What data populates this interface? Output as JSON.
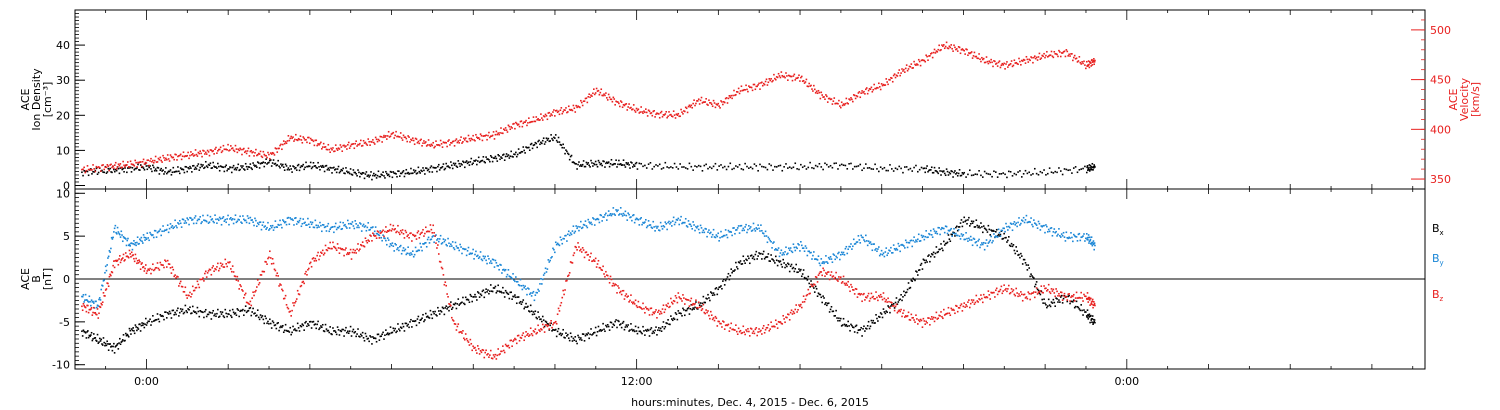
{
  "chart_data": [
    {
      "type": "scatter",
      "title": "",
      "xlabel": "hours:minutes, Dec. 4, 2015 - Dec. 6, 2015",
      "x_tick_labels": [
        "0:00",
        "12:00",
        "0:00"
      ],
      "x_tick_hours": [
        0,
        12,
        24
      ],
      "xlim_hours": [
        -1.75,
        31.3
      ],
      "left_axis": {
        "label_lines": [
          "ACE",
          "Ion Density",
          "[cm⁻³]"
        ],
        "ylim": [
          -1,
          50
        ],
        "ticks": [
          0,
          10,
          20,
          30,
          40
        ],
        "tick_labels": [
          "0",
          "10",
          "20",
          "30",
          "40"
        ]
      },
      "right_axis": {
        "label_lines": [
          "ACE",
          "Velocity",
          "[km/s]"
        ],
        "ylim": [
          340,
          520
        ],
        "ticks": [
          350,
          400,
          450,
          500
        ],
        "tick_labels": [
          "350",
          "400",
          "450",
          "500"
        ],
        "color": "#e8201f"
      },
      "series": [
        {
          "axis": "left",
          "color": "#000000",
          "points": [
            [
              -1.6,
              4
            ],
            [
              -1.0,
              4.5
            ],
            [
              -0.5,
              5
            ],
            [
              0,
              5.5
            ],
            [
              0.5,
              4
            ],
            [
              1,
              5
            ],
            [
              1.5,
              6
            ],
            [
              2,
              5
            ],
            [
              2.5,
              5.5
            ],
            [
              3,
              7
            ],
            [
              3.5,
              5
            ],
            [
              4,
              6
            ],
            [
              4.5,
              5
            ],
            [
              5,
              4
            ],
            [
              5.5,
              3
            ],
            [
              6,
              3.5
            ],
            [
              6.5,
              4
            ],
            [
              7,
              5
            ],
            [
              7.5,
              6
            ],
            [
              8,
              7
            ],
            [
              8.5,
              8
            ],
            [
              9,
              9
            ],
            [
              9.5,
              12
            ],
            [
              10,
              14
            ],
            [
              10.5,
              6
            ],
            [
              11,
              6.5
            ],
            [
              11.5,
              6.5
            ],
            [
              12,
              6
            ],
            [
              13,
              5.5
            ],
            [
              14,
              5.5
            ],
            [
              15,
              5.5
            ],
            [
              16,
              5.5
            ],
            [
              17,
              6
            ],
            [
              18,
              5
            ],
            [
              19,
              5
            ],
            [
              19.5,
              4
            ],
            [
              20,
              3.5
            ],
            [
              21,
              3.5
            ],
            [
              22,
              4
            ],
            [
              23,
              5
            ],
            [
              23.2,
              5.5
            ]
          ]
        },
        {
          "axis": "right",
          "color": "#e8201f",
          "points": [
            [
              -1.6,
              360
            ],
            [
              -1.0,
              363
            ],
            [
              -0.5,
              365
            ],
            [
              0,
              368
            ],
            [
              0.5,
              372
            ],
            [
              1,
              375
            ],
            [
              1.5,
              378
            ],
            [
              2,
              382
            ],
            [
              2.5,
              378
            ],
            [
              3,
              374
            ],
            [
              3.5,
              392
            ],
            [
              4,
              390
            ],
            [
              4.5,
              380
            ],
            [
              5,
              385
            ],
            [
              5.5,
              388
            ],
            [
              6,
              396
            ],
            [
              6.5,
              390
            ],
            [
              7,
              385
            ],
            [
              7.5,
              388
            ],
            [
              8,
              392
            ],
            [
              8.5,
              395
            ],
            [
              9,
              405
            ],
            [
              9.5,
              410
            ],
            [
              10,
              418
            ],
            [
              10.5,
              422
            ],
            [
              11,
              440
            ],
            [
              11.5,
              428
            ],
            [
              12,
              420
            ],
            [
              12.5,
              416
            ],
            [
              13,
              415
            ],
            [
              13.5,
              430
            ],
            [
              14,
              425
            ],
            [
              14.5,
              440
            ],
            [
              15,
              445
            ],
            [
              15.5,
              455
            ],
            [
              16,
              452
            ],
            [
              16.5,
              435
            ],
            [
              17,
              425
            ],
            [
              17.5,
              438
            ],
            [
              18,
              445
            ],
            [
              18.5,
              460
            ],
            [
              19,
              470
            ],
            [
              19.5,
              485
            ],
            [
              20,
              480
            ],
            [
              20.5,
              470
            ],
            [
              21,
              465
            ],
            [
              21.5,
              470
            ],
            [
              22,
              475
            ],
            [
              22.5,
              478
            ],
            [
              23,
              465
            ],
            [
              23.2,
              470
            ]
          ]
        }
      ]
    },
    {
      "type": "scatter",
      "title": "",
      "xlabel": "hours:minutes, Dec. 4, 2015 - Dec. 6, 2015",
      "x_tick_labels": [
        "0:00",
        "12:00",
        "0:00"
      ],
      "x_tick_hours": [
        0,
        12,
        24
      ],
      "xlim_hours": [
        -1.75,
        31.3
      ],
      "left_axis": {
        "label_lines": [
          "ACE",
          "B",
          "[nT]"
        ],
        "ylim": [
          -10.5,
          10.5
        ],
        "ticks": [
          -10,
          -5,
          0,
          5,
          10
        ],
        "tick_labels": [
          "-10",
          "-5",
          "0",
          "5",
          "10"
        ]
      },
      "zero_line": true,
      "legend": [
        "Bx",
        "By",
        "Bz"
      ],
      "series": [
        {
          "name": "Bx",
          "color": "#000000",
          "points": [
            [
              -1.6,
              -6
            ],
            [
              -1.2,
              -7
            ],
            [
              -0.8,
              -8
            ],
            [
              -0.4,
              -6
            ],
            [
              0,
              -5
            ],
            [
              0.5,
              -4
            ],
            [
              1,
              -3.5
            ],
            [
              1.5,
              -4
            ],
            [
              2,
              -4
            ],
            [
              2.5,
              -3.5
            ],
            [
              3,
              -5
            ],
            [
              3.5,
              -6
            ],
            [
              4,
              -5
            ],
            [
              4.5,
              -6
            ],
            [
              5,
              -6
            ],
            [
              5.5,
              -7
            ],
            [
              6,
              -6
            ],
            [
              6.5,
              -5
            ],
            [
              7,
              -4
            ],
            [
              7.5,
              -3
            ],
            [
              8,
              -2
            ],
            [
              8.5,
              -1
            ],
            [
              9,
              -2
            ],
            [
              9.5,
              -4
            ],
            [
              10,
              -6
            ],
            [
              10.5,
              -7
            ],
            [
              11,
              -6
            ],
            [
              11.5,
              -5
            ],
            [
              12,
              -6
            ],
            [
              12.5,
              -6
            ],
            [
              13,
              -4
            ],
            [
              13.5,
              -3
            ],
            [
              14,
              -1
            ],
            [
              14.5,
              2
            ],
            [
              15,
              3
            ],
            [
              15.5,
              2
            ],
            [
              16,
              1
            ],
            [
              16.5,
              -2
            ],
            [
              17,
              -5
            ],
            [
              17.5,
              -6
            ],
            [
              18,
              -4
            ],
            [
              18.5,
              -2
            ],
            [
              19,
              2
            ],
            [
              19.5,
              4
            ],
            [
              20,
              7
            ],
            [
              20.5,
              6
            ],
            [
              21,
              5
            ],
            [
              21.5,
              2
            ],
            [
              22,
              -3
            ],
            [
              22.5,
              -2
            ],
            [
              23,
              -4
            ],
            [
              23.2,
              -5
            ]
          ]
        },
        {
          "name": "By",
          "color": "#1a86d6",
          "points": [
            [
              -1.6,
              -2
            ],
            [
              -1.2,
              -3
            ],
            [
              -0.8,
              6
            ],
            [
              -0.4,
              4
            ],
            [
              0,
              5
            ],
            [
              0.5,
              6
            ],
            [
              1,
              7
            ],
            [
              1.5,
              7
            ],
            [
              2,
              7
            ],
            [
              2.5,
              7
            ],
            [
              3,
              6
            ],
            [
              3.5,
              7
            ],
            [
              4,
              6.5
            ],
            [
              4.5,
              6
            ],
            [
              5,
              6.5
            ],
            [
              5.5,
              6
            ],
            [
              6,
              4
            ],
            [
              6.5,
              3
            ],
            [
              7,
              5
            ],
            [
              7.5,
              4
            ],
            [
              8,
              3
            ],
            [
              8.5,
              2
            ],
            [
              9,
              0
            ],
            [
              9.5,
              -2
            ],
            [
              10,
              4
            ],
            [
              10.5,
              6
            ],
            [
              11,
              7
            ],
            [
              11.5,
              8
            ],
            [
              12,
              7
            ],
            [
              12.5,
              6
            ],
            [
              13,
              7
            ],
            [
              13.5,
              6
            ],
            [
              14,
              5
            ],
            [
              14.5,
              6
            ],
            [
              15,
              6
            ],
            [
              15.5,
              3
            ],
            [
              16,
              4
            ],
            [
              16.5,
              2
            ],
            [
              17,
              3
            ],
            [
              17.5,
              5
            ],
            [
              18,
              3
            ],
            [
              18.5,
              4
            ],
            [
              19,
              5
            ],
            [
              19.5,
              6
            ],
            [
              20,
              5
            ],
            [
              20.5,
              4
            ],
            [
              21,
              6
            ],
            [
              21.5,
              7
            ],
            [
              22,
              6
            ],
            [
              22.5,
              5
            ],
            [
              23,
              5
            ],
            [
              23.2,
              4
            ]
          ]
        },
        {
          "name": "Bz",
          "color": "#e8201f",
          "points": [
            [
              -1.6,
              -3
            ],
            [
              -1.2,
              -4
            ],
            [
              -0.8,
              2
            ],
            [
              -0.4,
              3
            ],
            [
              0,
              1
            ],
            [
              0.5,
              2
            ],
            [
              1,
              -2
            ],
            [
              1.5,
              1
            ],
            [
              2,
              2
            ],
            [
              2.5,
              -3
            ],
            [
              3,
              3
            ],
            [
              3.5,
              -4
            ],
            [
              4,
              2
            ],
            [
              4.5,
              4
            ],
            [
              5,
              3
            ],
            [
              5.5,
              5
            ],
            [
              6,
              6
            ],
            [
              6.5,
              5
            ],
            [
              7,
              6
            ],
            [
              7.5,
              -5
            ],
            [
              8,
              -8
            ],
            [
              8.5,
              -9
            ],
            [
              9,
              -7
            ],
            [
              9.5,
              -6
            ],
            [
              10,
              -5
            ],
            [
              10.5,
              4
            ],
            [
              11,
              2
            ],
            [
              11.5,
              -1
            ],
            [
              12,
              -3
            ],
            [
              12.5,
              -4
            ],
            [
              13,
              -2
            ],
            [
              13.5,
              -3
            ],
            [
              14,
              -5
            ],
            [
              14.5,
              -6
            ],
            [
              15,
              -6
            ],
            [
              15.5,
              -5
            ],
            [
              16,
              -3
            ],
            [
              16.5,
              1
            ],
            [
              17,
              0
            ],
            [
              17.5,
              -2
            ],
            [
              18,
              -2
            ],
            [
              18.5,
              -4
            ],
            [
              19,
              -5
            ],
            [
              19.5,
              -4
            ],
            [
              20,
              -3
            ],
            [
              20.5,
              -2
            ],
            [
              21,
              -1
            ],
            [
              21.5,
              -2
            ],
            [
              22,
              -1
            ],
            [
              22.5,
              -2
            ],
            [
              23,
              -2
            ],
            [
              23.2,
              -3
            ]
          ]
        }
      ]
    }
  ]
}
